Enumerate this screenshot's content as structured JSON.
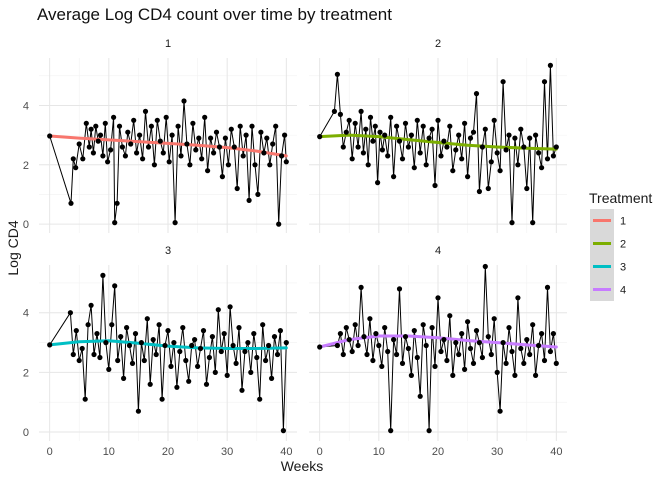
{
  "chart_data": {
    "type": "line",
    "title": "Average Log CD4 count over time by treatment",
    "xlabel": "Weeks",
    "ylabel": "Log CD4",
    "xlim": [
      -1.8,
      41.8
    ],
    "ylim": [
      -0.3,
      5.6
    ],
    "x_ticks": [
      0,
      10,
      20,
      30,
      40
    ],
    "y_ticks": [
      0,
      2,
      4
    ],
    "grid": true,
    "legend": {
      "title": "Treatment",
      "position": "right"
    },
    "facet_rows": 2,
    "facet_cols": 2,
    "panels": [
      {
        "label": "1",
        "color": "#F8766D",
        "x": [
          0,
          3.6,
          4.0,
          4.4,
          5.0,
          5.6,
          6.2,
          6.7,
          7.0,
          7.4,
          7.8,
          8.2,
          8.6,
          9.0,
          9.4,
          9.8,
          10.3,
          10.8,
          11.0,
          11.4,
          11.8,
          12.3,
          12.8,
          13.2,
          13.7,
          14.2,
          14.7,
          15.2,
          15.7,
          16.2,
          16.7,
          17.2,
          17.7,
          18.2,
          18.7,
          19.2,
          19.7,
          20.2,
          20.7,
          21.2,
          21.7,
          22.2,
          22.7,
          23.2,
          23.7,
          24.2,
          24.7,
          25.2,
          25.7,
          26.2,
          26.7,
          27.2,
          27.7,
          28.2,
          28.7,
          29.2,
          29.7,
          30.2,
          30.7,
          31.2,
          31.7,
          32.2,
          32.7,
          33.2,
          33.7,
          34.2,
          34.7,
          35.2,
          35.7,
          36.2,
          36.7,
          37.2,
          37.7,
          38.2,
          38.7,
          39.2,
          39.7,
          40.0
        ],
        "y": [
          2.97,
          0.7,
          2.2,
          1.9,
          2.7,
          2.2,
          3.4,
          2.6,
          3.2,
          2.4,
          3.3,
          2.8,
          3.0,
          2.3,
          3.4,
          2.1,
          2.5,
          3.6,
          0.05,
          0.7,
          3.3,
          2.6,
          2.3,
          3.1,
          2.7,
          3.5,
          2.4,
          3.0,
          2.2,
          3.8,
          2.6,
          3.3,
          2.0,
          3.5,
          2.8,
          2.4,
          3.6,
          2.1,
          3.0,
          0.05,
          3.3,
          2.3,
          4.15,
          2.7,
          2.0,
          3.4,
          2.5,
          2.9,
          2.2,
          3.6,
          1.8,
          2.9,
          2.4,
          3.1,
          2.6,
          1.6,
          2.9,
          2.0,
          3.2,
          2.6,
          1.2,
          3.3,
          2.3,
          3.0,
          0.8,
          3.3,
          2.0,
          1.0,
          3.1,
          2.4,
          2.9,
          2.0,
          2.7,
          3.3,
          0.0,
          2.3,
          3.0,
          2.1
        ]
      },
      {
        "label": "2",
        "color": "#7CAE00",
        "x": [
          0,
          2.5,
          3.0,
          3.5,
          4.0,
          4.5,
          5.0,
          5.5,
          6.0,
          6.5,
          7.0,
          7.4,
          7.8,
          8.2,
          8.6,
          9.0,
          9.4,
          9.8,
          10.2,
          10.6,
          11.0,
          11.5,
          12.0,
          12.5,
          13.0,
          13.5,
          14.0,
          14.5,
          15.0,
          15.5,
          16.0,
          16.5,
          17.0,
          17.5,
          18.0,
          18.5,
          19.0,
          19.5,
          20.0,
          20.5,
          21.0,
          21.5,
          22.0,
          22.5,
          23.0,
          23.5,
          24.0,
          24.5,
          25.0,
          25.5,
          26.0,
          26.5,
          27.0,
          27.5,
          28.0,
          28.5,
          29.0,
          29.5,
          30.0,
          30.5,
          31.0,
          31.5,
          32.0,
          32.5,
          33.0,
          33.5,
          34.0,
          34.5,
          35.0,
          35.5,
          36.0,
          36.5,
          37.0,
          37.5,
          38.0,
          38.5,
          39.0,
          39.5,
          40.0
        ],
        "y": [
          2.95,
          3.8,
          5.05,
          3.7,
          2.6,
          3.1,
          3.5,
          2.2,
          3.4,
          2.6,
          3.8,
          2.4,
          3.2,
          2.0,
          3.6,
          2.8,
          3.3,
          1.4,
          3.1,
          2.5,
          3.0,
          2.3,
          3.6,
          1.6,
          3.3,
          2.8,
          2.2,
          3.4,
          2.6,
          3.0,
          1.9,
          3.5,
          2.4,
          3.3,
          2.0,
          2.9,
          3.2,
          1.3,
          3.5,
          2.3,
          2.8,
          2.6,
          3.3,
          1.8,
          2.5,
          3.0,
          2.2,
          3.4,
          1.6,
          2.9,
          3.1,
          4.4,
          1.1,
          2.6,
          3.2,
          1.2,
          2.1,
          3.5,
          2.4,
          1.8,
          4.8,
          2.5,
          3.0,
          0.05,
          2.9,
          2.0,
          3.2,
          2.6,
          1.2,
          2.9,
          0.05,
          3.0,
          2.4,
          1.9,
          4.8,
          2.2,
          5.35,
          2.3,
          2.6
        ]
      },
      {
        "label": "3",
        "color": "#00BFC4",
        "x": [
          0,
          3.5,
          4.0,
          4.5,
          5.0,
          5.5,
          6.0,
          6.5,
          7.0,
          7.5,
          8.0,
          8.5,
          9.0,
          9.5,
          10.0,
          10.5,
          11.0,
          11.5,
          12.0,
          12.5,
          13.0,
          13.5,
          14.0,
          14.5,
          15.0,
          15.5,
          16.0,
          16.5,
          17.0,
          17.5,
          18.0,
          18.5,
          19.0,
          19.5,
          20.0,
          20.5,
          21.0,
          21.5,
          22.0,
          22.5,
          23.0,
          23.5,
          24.0,
          24.5,
          25.0,
          25.5,
          26.0,
          26.5,
          27.0,
          27.5,
          28.0,
          28.5,
          29.0,
          29.5,
          30.0,
          30.5,
          31.0,
          31.5,
          32.0,
          32.5,
          33.0,
          33.5,
          34.0,
          34.5,
          35.0,
          35.5,
          36.0,
          36.5,
          37.0,
          37.5,
          38.0,
          38.5,
          39.0,
          39.5,
          40.0
        ],
        "y": [
          2.92,
          4.0,
          2.6,
          3.4,
          2.4,
          2.8,
          1.1,
          3.6,
          4.25,
          2.6,
          3.3,
          2.5,
          5.25,
          3.0,
          2.1,
          3.6,
          4.9,
          2.4,
          3.2,
          1.8,
          3.5,
          2.9,
          2.3,
          3.3,
          0.7,
          3.0,
          2.4,
          3.8,
          1.6,
          3.1,
          2.6,
          3.6,
          1.1,
          2.9,
          3.4,
          2.2,
          3.0,
          1.5,
          2.7,
          3.5,
          2.4,
          1.7,
          2.9,
          3.1,
          2.2,
          2.8,
          3.4,
          1.6,
          2.5,
          3.2,
          2.0,
          4.1,
          2.7,
          3.3,
          1.9,
          4.2,
          2.9,
          2.3,
          3.5,
          1.4,
          2.7,
          3.0,
          2.0,
          3.3,
          2.5,
          1.1,
          3.6,
          2.4,
          2.9,
          1.8,
          3.2,
          2.6,
          3.4,
          0.05,
          3.0
        ]
      },
      {
        "label": "4",
        "color": "#C77CFF",
        "x": [
          0,
          3.0,
          3.5,
          4.0,
          4.5,
          5.0,
          5.5,
          6.0,
          6.5,
          7.0,
          7.5,
          8.0,
          8.5,
          9.0,
          9.5,
          10.0,
          10.5,
          11.0,
          11.5,
          12.0,
          12.5,
          13.0,
          13.5,
          14.0,
          14.5,
          15.0,
          15.5,
          16.0,
          16.5,
          17.0,
          17.5,
          18.0,
          18.5,
          19.0,
          19.5,
          20.0,
          20.5,
          21.0,
          21.5,
          22.0,
          22.5,
          23.0,
          23.5,
          24.0,
          24.5,
          25.0,
          25.5,
          26.0,
          26.5,
          27.0,
          27.5,
          28.0,
          28.5,
          29.0,
          29.5,
          30.0,
          30.5,
          31.0,
          31.5,
          32.0,
          32.5,
          33.0,
          33.5,
          34.0,
          34.5,
          35.0,
          35.5,
          36.0,
          36.5,
          37.0,
          37.5,
          38.0,
          38.5,
          39.0,
          39.5,
          40.0
        ],
        "y": [
          2.85,
          2.9,
          3.3,
          2.6,
          3.5,
          3.1,
          2.7,
          3.6,
          2.9,
          4.85,
          3.2,
          2.6,
          3.8,
          2.4,
          3.3,
          2.9,
          2.2,
          3.5,
          2.7,
          0.05,
          3.1,
          2.6,
          4.8,
          2.3,
          3.2,
          2.8,
          1.9,
          3.4,
          2.5,
          1.2,
          3.6,
          2.9,
          0.05,
          3.5,
          2.2,
          4.5,
          2.7,
          3.1,
          2.4,
          3.9,
          1.9,
          3.0,
          2.6,
          3.3,
          2.1,
          3.7,
          2.8,
          2.3,
          3.4,
          3.0,
          2.5,
          5.55,
          3.2,
          2.6,
          3.8,
          2.0,
          0.7,
          3.0,
          2.3,
          3.5,
          2.7,
          1.9,
          4.5,
          2.8,
          2.3,
          3.1,
          2.6,
          3.6,
          1.9,
          2.9,
          3.3,
          2.4,
          4.85,
          2.7,
          3.3,
          2.3
        ]
      }
    ],
    "smooth": [
      {
        "treatment": "1",
        "x": [
          0,
          5,
          10,
          15,
          20,
          25,
          30,
          35,
          40
        ],
        "y": [
          2.97,
          2.9,
          2.84,
          2.78,
          2.72,
          2.66,
          2.58,
          2.46,
          2.3
        ]
      },
      {
        "treatment": "2",
        "x": [
          0,
          5,
          10,
          15,
          20,
          25,
          30,
          35,
          40
        ],
        "y": [
          2.95,
          3.0,
          2.95,
          2.85,
          2.75,
          2.66,
          2.6,
          2.56,
          2.53
        ]
      },
      {
        "treatment": "3",
        "x": [
          0,
          5,
          10,
          15,
          20,
          25,
          30,
          35,
          40
        ],
        "y": [
          2.92,
          3.03,
          3.06,
          2.98,
          2.88,
          2.82,
          2.8,
          2.8,
          2.82
        ]
      },
      {
        "treatment": "4",
        "x": [
          0,
          5,
          10,
          15,
          20,
          25,
          30,
          35,
          40
        ],
        "y": [
          2.85,
          3.1,
          3.22,
          3.22,
          3.16,
          3.07,
          3.0,
          2.92,
          2.85
        ]
      }
    ]
  }
}
